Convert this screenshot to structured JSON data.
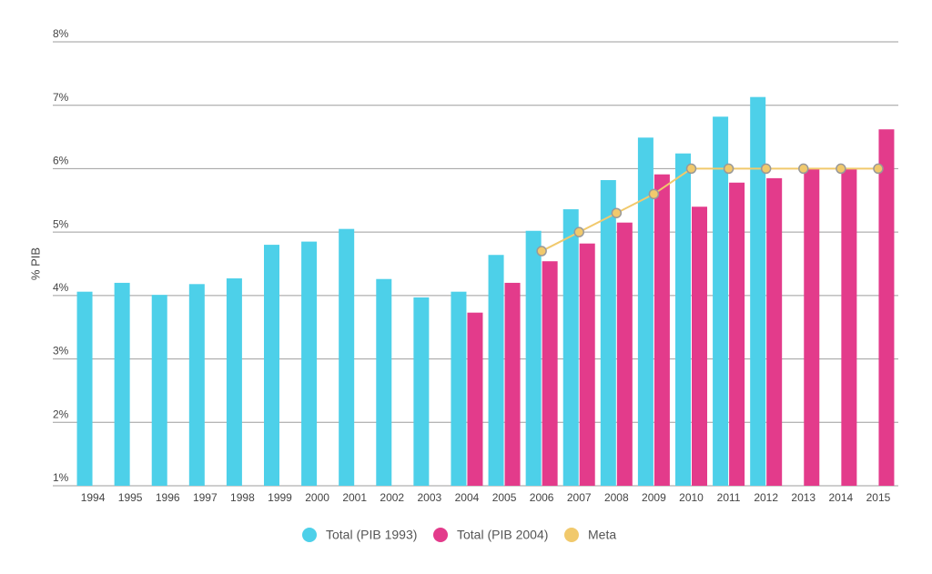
{
  "chart_data": {
    "type": "bar",
    "y_label": "% PIB",
    "categories": [
      "1994",
      "1995",
      "1996",
      "1997",
      "1998",
      "1999",
      "2000",
      "2001",
      "2002",
      "2003",
      "2004",
      "2005",
      "2006",
      "2007",
      "2008",
      "2009",
      "2010",
      "2011",
      "2012",
      "2013",
      "2014",
      "2015"
    ],
    "series": [
      {
        "name": "Total (PIB 1993)",
        "color": "#4dd0e9",
        "type": "bar",
        "values": [
          4.06,
          4.2,
          4.01,
          4.18,
          4.27,
          4.8,
          4.85,
          5.05,
          4.26,
          3.97,
          4.06,
          4.64,
          5.02,
          5.36,
          5.82,
          6.49,
          6.24,
          6.82,
          7.13,
          null,
          null,
          null
        ]
      },
      {
        "name": "Total (PIB 2004)",
        "color": "#e33b8b",
        "type": "bar",
        "values": [
          null,
          null,
          null,
          null,
          null,
          null,
          null,
          null,
          null,
          null,
          3.73,
          4.2,
          4.54,
          4.82,
          5.15,
          5.91,
          5.4,
          5.78,
          5.85,
          6.0,
          6.0,
          6.62
        ]
      },
      {
        "name": "Meta",
        "color": "#f1c96c",
        "type": "line",
        "values": [
          null,
          null,
          null,
          null,
          null,
          null,
          null,
          null,
          null,
          null,
          null,
          null,
          4.7,
          5.0,
          5.3,
          5.6,
          6.0,
          6.0,
          6.0,
          6.0,
          6.0,
          6.0
        ]
      }
    ],
    "ylim": [
      1,
      8
    ],
    "yticks": [
      {
        "value": 1,
        "label": "1%"
      },
      {
        "value": 2,
        "label": "2%"
      },
      {
        "value": 3,
        "label": "3%"
      },
      {
        "value": 4,
        "label": "4%"
      },
      {
        "value": 5,
        "label": "5%"
      },
      {
        "value": 6,
        "label": "6%"
      },
      {
        "value": 7,
        "label": "7%"
      },
      {
        "value": 8,
        "label": "8%"
      }
    ],
    "grid": true,
    "legend": "bottom"
  }
}
